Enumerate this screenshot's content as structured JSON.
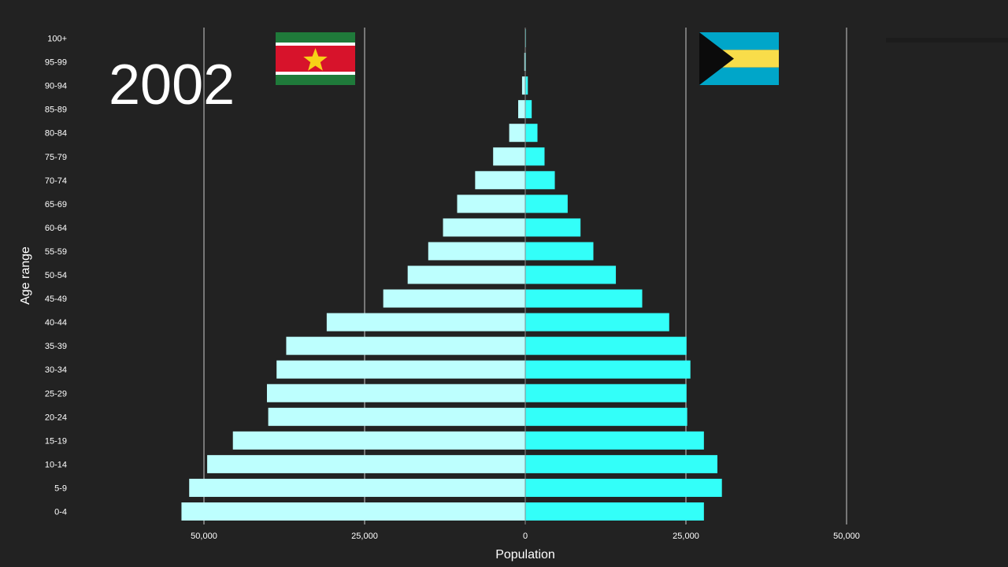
{
  "year": "2002",
  "flags": {
    "left": {
      "icon": "suriname-flag-icon"
    },
    "right": {
      "icon": "bahamas-flag-icon"
    }
  },
  "colors": {
    "background": "#222222",
    "left_bar": "#bdfffe",
    "right_bar": "#33fff9",
    "grid": "#cccccc",
    "text": "#ffffff"
  },
  "chart_data": {
    "type": "bar",
    "orientation": "horizontal",
    "layout": "population-pyramid",
    "xlabel": "Population",
    "ylabel": "Age range",
    "xlim": [
      -50000,
      50000
    ],
    "x_ticks": [
      -50000,
      -25000,
      0,
      25000,
      50000
    ],
    "x_tick_labels": [
      "50,000",
      "25,000",
      "0",
      "25,000",
      "50,000"
    ],
    "grid": true,
    "categories": [
      "0-4",
      "5-9",
      "10-14",
      "15-19",
      "20-24",
      "25-29",
      "30-34",
      "35-39",
      "40-44",
      "45-49",
      "50-54",
      "55-59",
      "60-64",
      "65-69",
      "70-74",
      "75-79",
      "80-84",
      "85-89",
      "90-94",
      "95-99",
      "100+"
    ],
    "series": [
      {
        "values": [
          53500,
          52300,
          49500,
          45500,
          40000,
          40200,
          38700,
          37200,
          30900,
          22100,
          18300,
          15100,
          12800,
          10600,
          7800,
          5000,
          2500,
          1100,
          500,
          150,
          50
        ]
      },
      {
        "values": [
          27800,
          30600,
          29900,
          27800,
          25200,
          25100,
          25700,
          25100,
          22400,
          18200,
          14100,
          10600,
          8600,
          6600,
          4600,
          3000,
          1900,
          1000,
          400,
          100,
          30
        ]
      }
    ]
  }
}
